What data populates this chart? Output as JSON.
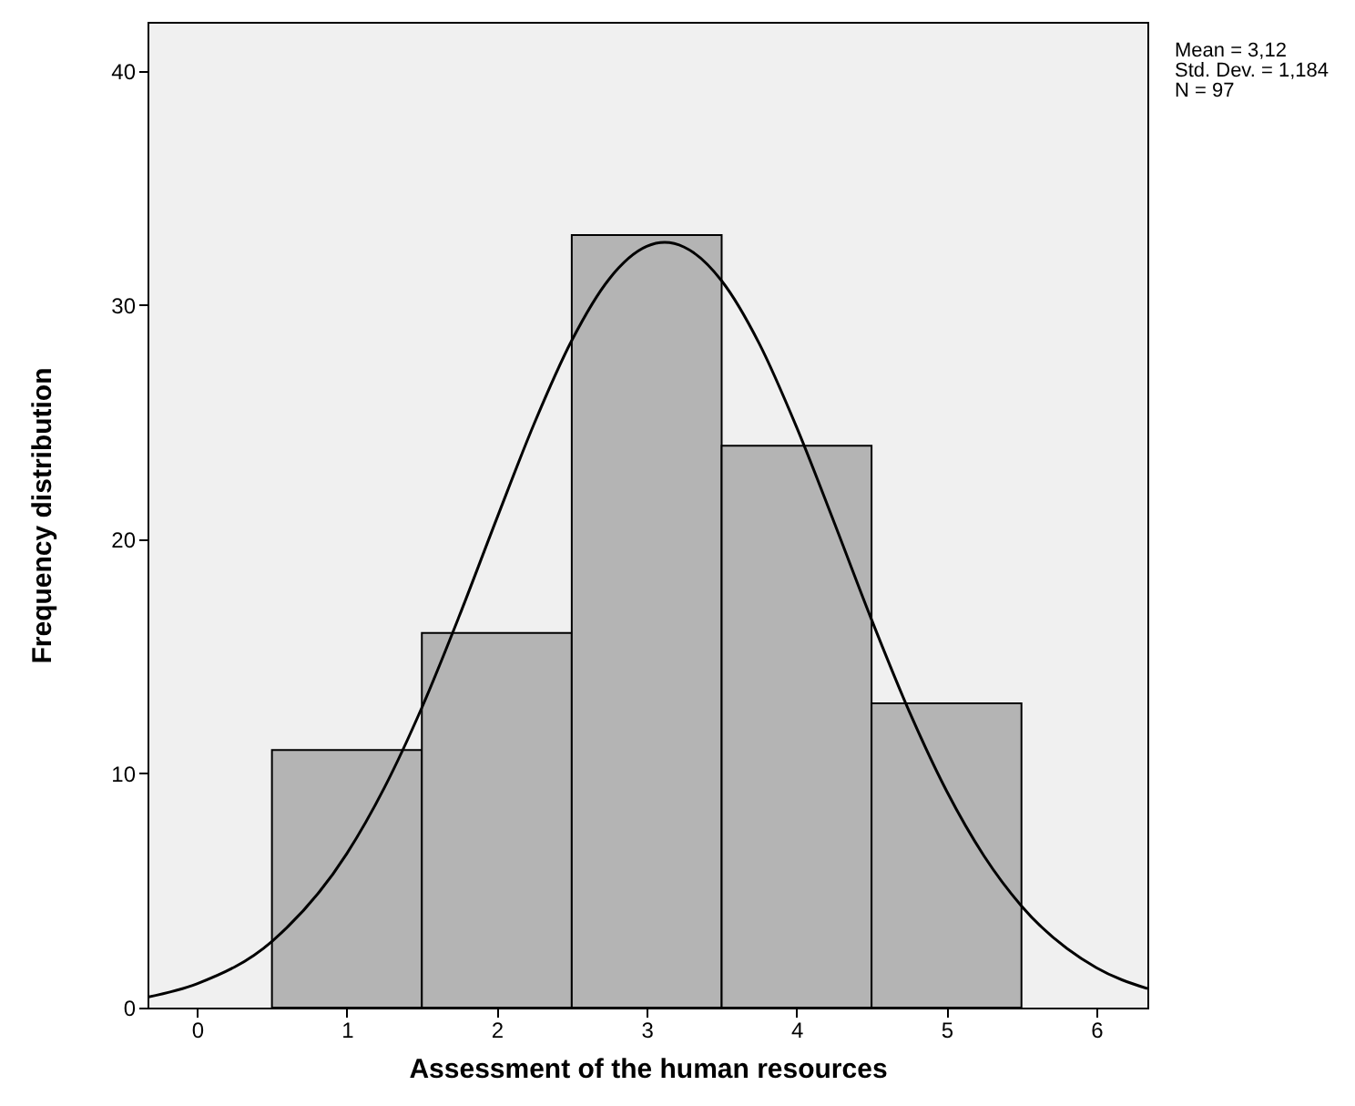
{
  "chart_data": {
    "type": "histogram",
    "xlabel": "Assessment of the human resources",
    "ylabel": "Frequency distribution",
    "bins": [
      0.5,
      1.5,
      2.5,
      3.5,
      4.5,
      5.5
    ],
    "values": [
      11,
      16,
      33,
      24,
      13
    ],
    "color": "#b4b4b4",
    "series": [
      {
        "type": "line",
        "color": "#000000",
        "x": [
          -0.33,
          0,
          0.5,
          1,
          1.25,
          1.5,
          1.75,
          2,
          2.25,
          2.5,
          2.75,
          3,
          3.12,
          3.25,
          3.5,
          3.75,
          4,
          4.25,
          4.5,
          4.75,
          5,
          5.25,
          5.5,
          6,
          6.34
        ],
        "values": [
          0.45,
          1.02,
          2.83,
          6.58,
          9.39,
          12.81,
          16.73,
          20.89,
          24.95,
          28.49,
          31.12,
          32.51,
          32.68,
          32.48,
          31.04,
          28.37,
          24.79,
          20.73,
          16.57,
          12.67,
          9.26,
          6.48,
          4.34,
          1.7,
          0.81
        ]
      }
    ],
    "xlim": [
      -0.33,
      6.34
    ],
    "xticks": [
      0,
      1,
      2,
      3,
      4,
      5,
      6
    ],
    "ylim": [
      0,
      42.1
    ],
    "yticks": [
      0,
      10,
      20,
      30,
      40
    ],
    "grid": false,
    "annotations": [
      "Mean = 3,12",
      "Std. Dev. = 1,184",
      "N = 97"
    ]
  }
}
